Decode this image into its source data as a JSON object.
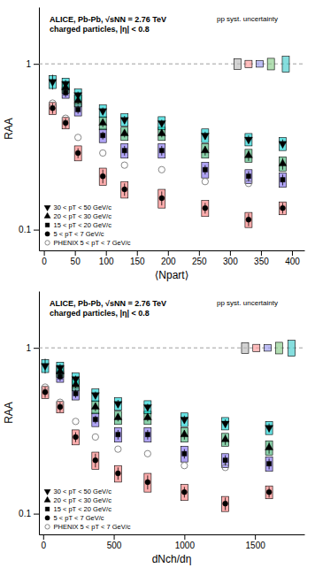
{
  "chart_data": [
    {
      "type": "scatter",
      "title": "ALICE, Pb-Pb, √sNN = 2.76 TeV",
      "subtitle": "charged particles, |η| < 0.8",
      "annotations": [
        "pp syst. uncertainty"
      ],
      "x_label": "⟨Npart⟩",
      "y_label": "RAA",
      "log": "y",
      "grid": false,
      "legend": "lower left",
      "xlim": [
        -8,
        420
      ],
      "xticks": [
        0,
        50,
        100,
        150,
        200,
        250,
        300,
        350,
        400
      ],
      "ylim": [
        0.075,
        2.2
      ],
      "yticks": [
        0.1,
        1
      ],
      "reference_lines": [
        1
      ],
      "series": [
        {
          "name": "30 < pT < 50 GeV/c",
          "color": "#00CED1",
          "marker": "triangle-down",
          "x": [
            14,
            35,
            55,
            95,
            130,
            190,
            260,
            330,
            385
          ],
          "values": [
            0.78,
            0.76,
            0.65,
            0.52,
            0.46,
            0.44,
            0.37,
            0.35,
            0.33
          ],
          "errors": [
            0.08,
            0.04,
            0.03,
            0.025,
            0.025,
            0.02,
            0.02,
            0.02,
            0.02
          ],
          "syst_errors": [
            0.07,
            0.06,
            0.055,
            0.045,
            0.04,
            0.04,
            0.035,
            0.03,
            0.03
          ]
        },
        {
          "name": "20 < pT < 30 GeV/c",
          "color": "#3CB371",
          "marker": "triangle-up",
          "x": [
            14,
            35,
            55,
            95,
            130,
            190,
            260,
            330,
            385
          ],
          "values": [
            null,
            0.72,
            0.6,
            0.44,
            0.38,
            0.38,
            0.3,
            0.28,
            0.25
          ],
          "errors": [
            null,
            0.04,
            0.03,
            0.025,
            0.02,
            0.02,
            0.02,
            0.02,
            0.02
          ],
          "syst_errors": [
            null,
            0.055,
            0.05,
            0.04,
            0.035,
            0.035,
            0.03,
            0.025,
            0.025
          ]
        },
        {
          "name": "15 < pT < 20 GeV/c",
          "color": "#7B68EE",
          "marker": "square",
          "x": [
            14,
            35,
            55,
            95,
            130,
            190,
            260,
            330,
            385
          ],
          "values": [
            null,
            0.67,
            0.53,
            0.37,
            0.3,
            0.3,
            0.23,
            0.21,
            0.2
          ],
          "errors": [
            null,
            0.04,
            0.03,
            0.02,
            0.02,
            0.02,
            0.015,
            0.015,
            0.015
          ],
          "syst_errors": [
            null,
            0.05,
            0.045,
            0.035,
            0.03,
            0.03,
            0.025,
            0.02,
            0.02
          ]
        },
        {
          "name": "5 < pT < 7 GeV/c",
          "color": "#FF7777",
          "marker": "circle",
          "x": [
            14,
            35,
            55,
            95,
            130,
            190,
            260,
            330,
            385
          ],
          "values": [
            0.54,
            0.44,
            0.29,
            0.21,
            0.175,
            0.155,
            0.135,
            0.115,
            0.135
          ],
          "errors": [
            0.04,
            0.03,
            0.02,
            0.02,
            0.015,
            0.015,
            0.01,
            0.01,
            0.01
          ],
          "syst_errors": [
            0.045,
            0.035,
            0.03,
            0.025,
            0.02,
            0.02,
            0.015,
            0.012,
            0.012
          ]
        },
        {
          "name": "PHENIX 5 < pT < 7 GeV/c",
          "color": "#888888",
          "marker": "circle-open",
          "x": [
            14,
            35,
            55,
            95,
            130,
            190,
            260,
            330
          ],
          "values": [
            0.58,
            0.47,
            0.36,
            0.29,
            0.245,
            0.23,
            0.195,
            0.19
          ]
        }
      ],
      "pp_syst": {
        "x": [
          312,
          330,
          348,
          366,
          390
        ],
        "values": [
          1.0,
          1.0,
          1.0,
          1.0,
          1.0
        ],
        "heights": [
          0.15,
          0.1,
          0.09,
          0.16,
          0.22
        ],
        "colors": [
          "#BBBBBB",
          "#FF9999",
          "#9999EE",
          "#88CC88",
          "#44CCCC"
        ]
      }
    },
    {
      "type": "scatter",
      "title": "ALICE, Pb-Pb, √sNN = 2.76 TeV",
      "subtitle": "charged particles, |η| < 0.8",
      "annotations": [
        "pp syst. uncertainty"
      ],
      "x_label": "dNch/dη",
      "y_label": "RAA",
      "log": "y",
      "grid": false,
      "legend": "lower left",
      "xlim": [
        -30,
        1850
      ],
      "xticks": [
        0,
        500,
        1000,
        1500
      ],
      "ylim": [
        0.075,
        2.2
      ],
      "yticks": [
        0.1,
        1
      ],
      "reference_lines": [
        1
      ],
      "series": [
        {
          "name": "30 < pT < 50 GeV/c",
          "color": "#00CED1",
          "marker": "triangle-down",
          "x": [
            14,
            120,
            230,
            370,
            530,
            740,
            1000,
            1290,
            1600
          ],
          "values": [
            0.78,
            0.76,
            0.65,
            0.52,
            0.46,
            0.44,
            0.37,
            0.35,
            0.33
          ],
          "errors": [
            0.08,
            0.04,
            0.03,
            0.025,
            0.025,
            0.02,
            0.02,
            0.02,
            0.02
          ],
          "syst_errors": [
            0.07,
            0.06,
            0.055,
            0.045,
            0.04,
            0.04,
            0.035,
            0.03,
            0.03
          ]
        },
        {
          "name": "20 < pT < 30 GeV/c",
          "color": "#3CB371",
          "marker": "triangle-up",
          "x": [
            14,
            120,
            230,
            370,
            530,
            740,
            1000,
            1290,
            1600
          ],
          "values": [
            null,
            0.72,
            0.6,
            0.44,
            0.38,
            0.38,
            0.3,
            0.28,
            0.25
          ],
          "errors": [
            null,
            0.04,
            0.03,
            0.025,
            0.02,
            0.02,
            0.02,
            0.02,
            0.02
          ],
          "syst_errors": [
            null,
            0.055,
            0.05,
            0.04,
            0.035,
            0.035,
            0.03,
            0.025,
            0.025
          ]
        },
        {
          "name": "15 < pT < 20 GeV/c",
          "color": "#7B68EE",
          "marker": "square",
          "x": [
            14,
            120,
            230,
            370,
            530,
            740,
            1000,
            1290,
            1600
          ],
          "values": [
            null,
            0.67,
            0.53,
            0.37,
            0.3,
            0.3,
            0.23,
            0.21,
            0.2
          ],
          "errors": [
            null,
            0.04,
            0.03,
            0.02,
            0.02,
            0.02,
            0.015,
            0.015,
            0.015
          ],
          "syst_errors": [
            null,
            0.05,
            0.045,
            0.035,
            0.03,
            0.03,
            0.025,
            0.02,
            0.02
          ]
        },
        {
          "name": "5 < pT < 7 GeV/c",
          "color": "#FF7777",
          "marker": "circle",
          "x": [
            14,
            120,
            230,
            370,
            530,
            740,
            1000,
            1290,
            1600
          ],
          "values": [
            0.54,
            0.44,
            0.29,
            0.21,
            0.175,
            0.155,
            0.135,
            0.115,
            0.135
          ],
          "errors": [
            0.04,
            0.03,
            0.02,
            0.02,
            0.015,
            0.015,
            0.01,
            0.01,
            0.01
          ],
          "syst_errors": [
            0.045,
            0.035,
            0.03,
            0.025,
            0.02,
            0.02,
            0.015,
            0.012,
            0.012
          ]
        },
        {
          "name": "PHENIX 5 < pT < 7 GeV/c",
          "color": "#888888",
          "marker": "circle-open",
          "x": [
            14,
            120,
            230,
            370,
            530,
            740,
            1000,
            1290
          ],
          "values": [
            0.58,
            0.47,
            0.36,
            0.29,
            0.245,
            0.23,
            0.195,
            0.19
          ]
        }
      ],
      "pp_syst": {
        "x": [
          1430,
          1510,
          1590,
          1670,
          1760
        ],
        "values": [
          1.0,
          1.0,
          1.0,
          1.0,
          1.0
        ],
        "heights": [
          0.15,
          0.1,
          0.09,
          0.16,
          0.22
        ],
        "colors": [
          "#BBBBBB",
          "#FF9999",
          "#9999EE",
          "#88CC88",
          "#44CCCC"
        ]
      }
    }
  ]
}
